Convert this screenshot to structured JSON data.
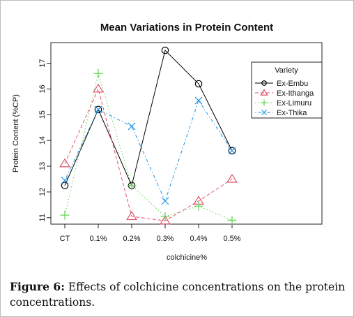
{
  "chart_data": {
    "type": "line",
    "title": "Mean Variations in Protein Content",
    "xlabel": "colchicine%",
    "ylabel": "Protein Content (%CP)",
    "categories": [
      "CT",
      "0.1%",
      "0.2%",
      "0.3%",
      "0.4%",
      "0.5%"
    ],
    "ylim": [
      10.75,
      17.8
    ],
    "yticks": [
      11,
      12,
      13,
      14,
      15,
      16,
      17
    ],
    "grid": false,
    "legend": {
      "title": "Variety",
      "placement": "right"
    },
    "series": [
      {
        "name": "Ex-Embu",
        "color": "#000000",
        "marker": "circle",
        "dash": "solid",
        "values": [
          12.25,
          15.2,
          12.25,
          17.5,
          16.2,
          13.6
        ]
      },
      {
        "name": "Ex-Ithanga",
        "color": "#df536b",
        "marker": "triangle",
        "dash": "dashed",
        "values": [
          13.1,
          16.0,
          11.05,
          10.88,
          11.65,
          12.5
        ]
      },
      {
        "name": "Ex-Limuru",
        "color": "#61d04f",
        "marker": "plus",
        "dash": "dotted",
        "values": [
          11.1,
          16.6,
          12.25,
          11.05,
          11.45,
          10.9
        ]
      },
      {
        "name": "Ex-Thika",
        "color": "#2297e6",
        "marker": "cross",
        "dash": "dotdash",
        "values": [
          12.45,
          15.2,
          14.55,
          11.65,
          15.55,
          13.6
        ]
      }
    ]
  },
  "caption": {
    "lead": "Figure 6:",
    "text": " Effects of colchicine concentrations on the protein concentrations."
  }
}
